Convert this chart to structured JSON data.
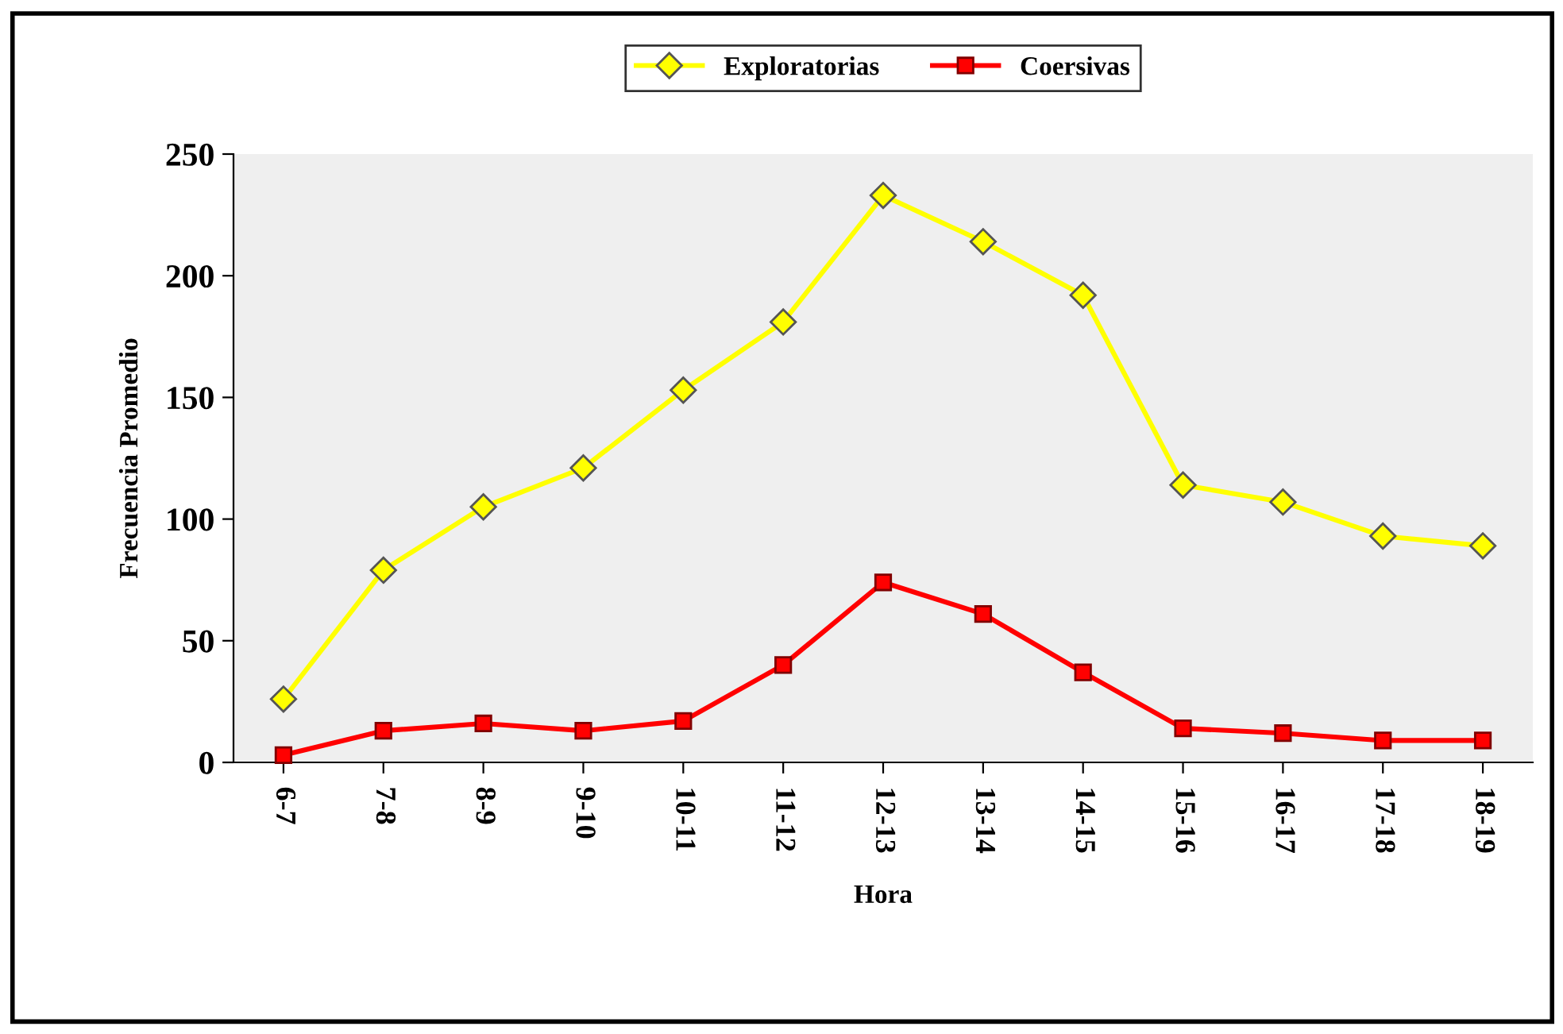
{
  "chart_data": {
    "type": "line",
    "xlabel": "Hora",
    "ylabel": "Frecuencia Promedio",
    "categories": [
      "6-7",
      "7-8",
      "8-9",
      "9-10",
      "10-11",
      "11-12",
      "12-13",
      "13-14",
      "14-15",
      "15-16",
      "16-17",
      "17-18",
      "18-19"
    ],
    "series": [
      {
        "name": "Exploratorias",
        "color": "#ffff00",
        "marker": "diamond",
        "values": [
          26,
          79,
          105,
          121,
          153,
          181,
          233,
          214,
          192,
          114,
          107,
          93,
          89
        ]
      },
      {
        "name": "Coersivas",
        "color": "#ff0000",
        "marker": "square",
        "values": [
          3,
          13,
          16,
          13,
          17,
          40,
          74,
          61,
          37,
          14,
          12,
          9,
          9
        ]
      }
    ],
    "ylim": [
      0,
      250
    ],
    "yticks": [
      0,
      50,
      100,
      150,
      200,
      250
    ],
    "grid": false,
    "legend": "top"
  }
}
